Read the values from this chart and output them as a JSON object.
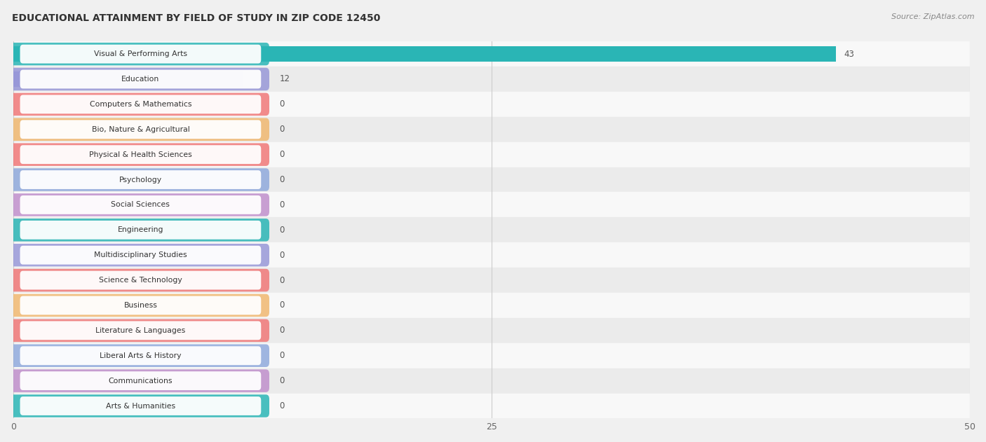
{
  "title": "EDUCATIONAL ATTAINMENT BY FIELD OF STUDY IN ZIP CODE 12450",
  "source": "Source: ZipAtlas.com",
  "categories": [
    "Visual & Performing Arts",
    "Education",
    "Computers & Mathematics",
    "Bio, Nature & Agricultural",
    "Physical & Health Sciences",
    "Psychology",
    "Social Sciences",
    "Engineering",
    "Multidisciplinary Studies",
    "Science & Technology",
    "Business",
    "Literature & Languages",
    "Liberal Arts & History",
    "Communications",
    "Arts & Humanities"
  ],
  "values": [
    43,
    12,
    0,
    0,
    0,
    0,
    0,
    0,
    0,
    0,
    0,
    0,
    0,
    0,
    0
  ],
  "bar_colors": [
    "#2ab5b5",
    "#9898d8",
    "#f07878",
    "#f0b870",
    "#f07878",
    "#90aadc",
    "#c090cc",
    "#2ab5b5",
    "#9898d8",
    "#f07878",
    "#f0b870",
    "#f07878",
    "#90aadc",
    "#c090cc",
    "#2ab5b5"
  ],
  "pill_colors": [
    "#2ab5b5",
    "#9898d8",
    "#f07878",
    "#f0b870",
    "#f07878",
    "#90aadc",
    "#c090cc",
    "#2ab5b5",
    "#9898d8",
    "#f07878",
    "#f0b870",
    "#f07878",
    "#90aadc",
    "#c090cc",
    "#2ab5b5"
  ],
  "xlim": [
    0,
    50
  ],
  "xticks": [
    0,
    25,
    50
  ],
  "title_fontsize": 10,
  "bar_height": 0.62,
  "background_color": "#f0f0f0",
  "row_bg_even": "#f8f8f8",
  "row_bg_odd": "#ebebeb"
}
